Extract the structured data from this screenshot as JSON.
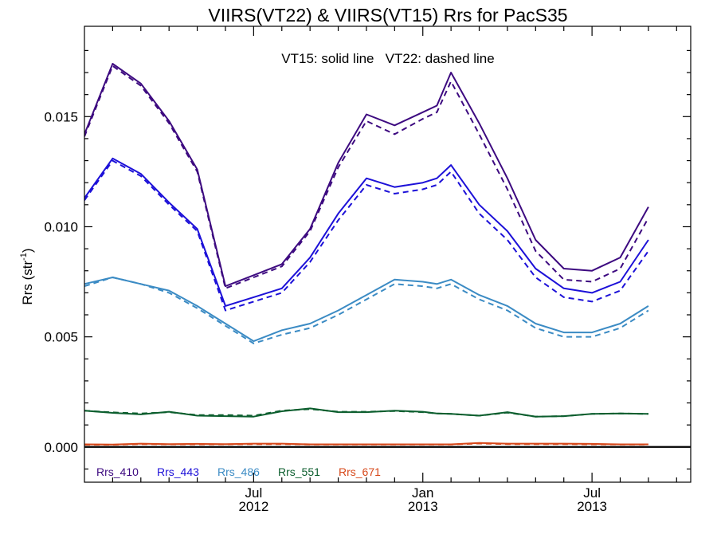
{
  "chart_data": {
    "type": "line",
    "title": "VIIRS(VT22) & VIIRS(VT15)  Rrs for PacS35",
    "note": "VT15: solid line   VT22: dashed line",
    "ylabel_main": "Rrs (str",
    "ylabel_sup": "-1",
    "ylabel_end": ")",
    "ylim": [
      -0.0016,
      0.0191
    ],
    "xlim": [
      0,
      21.5
    ],
    "y_ticks": [
      {
        "value": 0.0,
        "label": "0.000"
      },
      {
        "value": 0.005,
        "label": "0.005"
      },
      {
        "value": 0.01,
        "label": "0.010"
      },
      {
        "value": 0.015,
        "label": "0.015"
      }
    ],
    "x_ticks": [
      {
        "value": 6,
        "month": "Jul",
        "year": "2012"
      },
      {
        "value": 12,
        "month": "Jan",
        "year": "2013"
      },
      {
        "value": 18,
        "month": "Jul",
        "year": "2013"
      }
    ],
    "x": [
      0,
      1,
      2,
      3,
      4,
      5,
      6,
      7,
      8,
      9,
      10,
      11,
      12,
      12.5,
      13,
      14,
      15,
      16,
      17,
      18,
      19,
      20,
      21,
      21.5
    ],
    "zero_line": 0,
    "series": [
      {
        "name": "Rrs_410",
        "color": "#3d0a80",
        "vt15": [
          0.0142,
          0.0174,
          0.0165,
          0.0148,
          0.0126,
          0.0073,
          0.0078,
          0.0083,
          0.0099,
          0.0129,
          0.0151,
          0.0146,
          0.0152,
          0.0155,
          0.017,
          0.0147,
          0.0122,
          0.0094,
          0.0081,
          0.008,
          0.0086,
          0.0109,
          null,
          null
        ],
        "vt22": [
          0.0141,
          0.0173,
          0.0164,
          0.0147,
          0.0125,
          0.0072,
          0.0077,
          0.0082,
          0.0098,
          0.0127,
          0.0148,
          0.0142,
          0.0149,
          0.0152,
          0.0166,
          0.0142,
          0.0117,
          0.0089,
          0.0076,
          0.0075,
          0.0081,
          0.0104,
          null,
          null
        ]
      },
      {
        "name": "Rrs_443",
        "color": "#1c10d8",
        "vt15": [
          0.0113,
          0.0131,
          0.0124,
          0.0111,
          0.0099,
          0.0064,
          0.0068,
          0.0072,
          0.0086,
          0.0106,
          0.0122,
          0.0118,
          0.012,
          0.0122,
          0.0128,
          0.011,
          0.0098,
          0.0081,
          0.0072,
          0.007,
          0.0075,
          0.0094,
          null,
          null
        ],
        "vt22": [
          0.0112,
          0.013,
          0.0123,
          0.011,
          0.0098,
          0.0062,
          0.0066,
          0.007,
          0.0084,
          0.0103,
          0.0119,
          0.0115,
          0.0117,
          0.0119,
          0.0125,
          0.0106,
          0.0094,
          0.0077,
          0.0068,
          0.0066,
          0.0071,
          0.0089,
          null,
          null
        ]
      },
      {
        "name": "Rrs_486",
        "color": "#3b8bc4",
        "vt15": [
          0.0074,
          0.0077,
          0.0074,
          0.0071,
          0.0064,
          0.0056,
          0.0048,
          0.0053,
          0.0056,
          0.0062,
          0.0069,
          0.0076,
          0.0075,
          0.0074,
          0.0076,
          0.0069,
          0.0064,
          0.0056,
          0.0052,
          0.0052,
          0.0056,
          0.0064,
          null,
          null
        ],
        "vt22": [
          0.0073,
          0.0077,
          0.0074,
          0.007,
          0.0063,
          0.0055,
          0.0047,
          0.0051,
          0.0054,
          0.006,
          0.0067,
          0.0074,
          0.0073,
          0.0072,
          0.0074,
          0.0067,
          0.0062,
          0.0054,
          0.005,
          0.005,
          0.0054,
          0.0062,
          null,
          null
        ]
      },
      {
        "name": "Rrs_551",
        "color": "#0c5e2e",
        "vt15": [
          0.00165,
          0.00155,
          0.00148,
          0.0016,
          0.00142,
          0.0014,
          0.00138,
          0.00162,
          0.00175,
          0.00158,
          0.00158,
          0.00165,
          0.0016,
          0.00152,
          0.0015,
          0.00142,
          0.00158,
          0.00138,
          0.0014,
          0.0015,
          0.00152,
          0.0015,
          null,
          null
        ],
        "vt22": [
          0.00165,
          0.00157,
          0.00152,
          0.00158,
          0.00145,
          0.00145,
          0.00142,
          0.00165,
          0.00172,
          0.0016,
          0.0016,
          0.00163,
          0.00158,
          0.00152,
          0.0015,
          0.00142,
          0.00156,
          0.00138,
          0.0014,
          0.0015,
          0.00152,
          0.0015,
          null,
          null
        ]
      },
      {
        "name": "Rrs_671",
        "color": "#d7481a",
        "vt15": [
          0.00012,
          0.00011,
          0.00015,
          0.00013,
          0.00014,
          0.00013,
          0.00015,
          0.00015,
          0.00012,
          0.00012,
          0.00012,
          0.00012,
          0.00012,
          0.00012,
          0.00012,
          0.00018,
          0.00015,
          0.00015,
          0.00015,
          0.00014,
          0.00012,
          0.00012,
          null,
          null
        ],
        "vt22": [
          0.0001,
          0.0001,
          0.00013,
          0.00012,
          0.00012,
          0.00012,
          0.00013,
          0.00013,
          0.00011,
          0.00011,
          0.00011,
          0.00011,
          0.00011,
          0.00011,
          0.00011,
          0.00016,
          0.00013,
          0.00013,
          0.00013,
          0.00012,
          0.00011,
          0.00011,
          null,
          null
        ]
      }
    ],
    "legend_position": "bottom-left"
  }
}
